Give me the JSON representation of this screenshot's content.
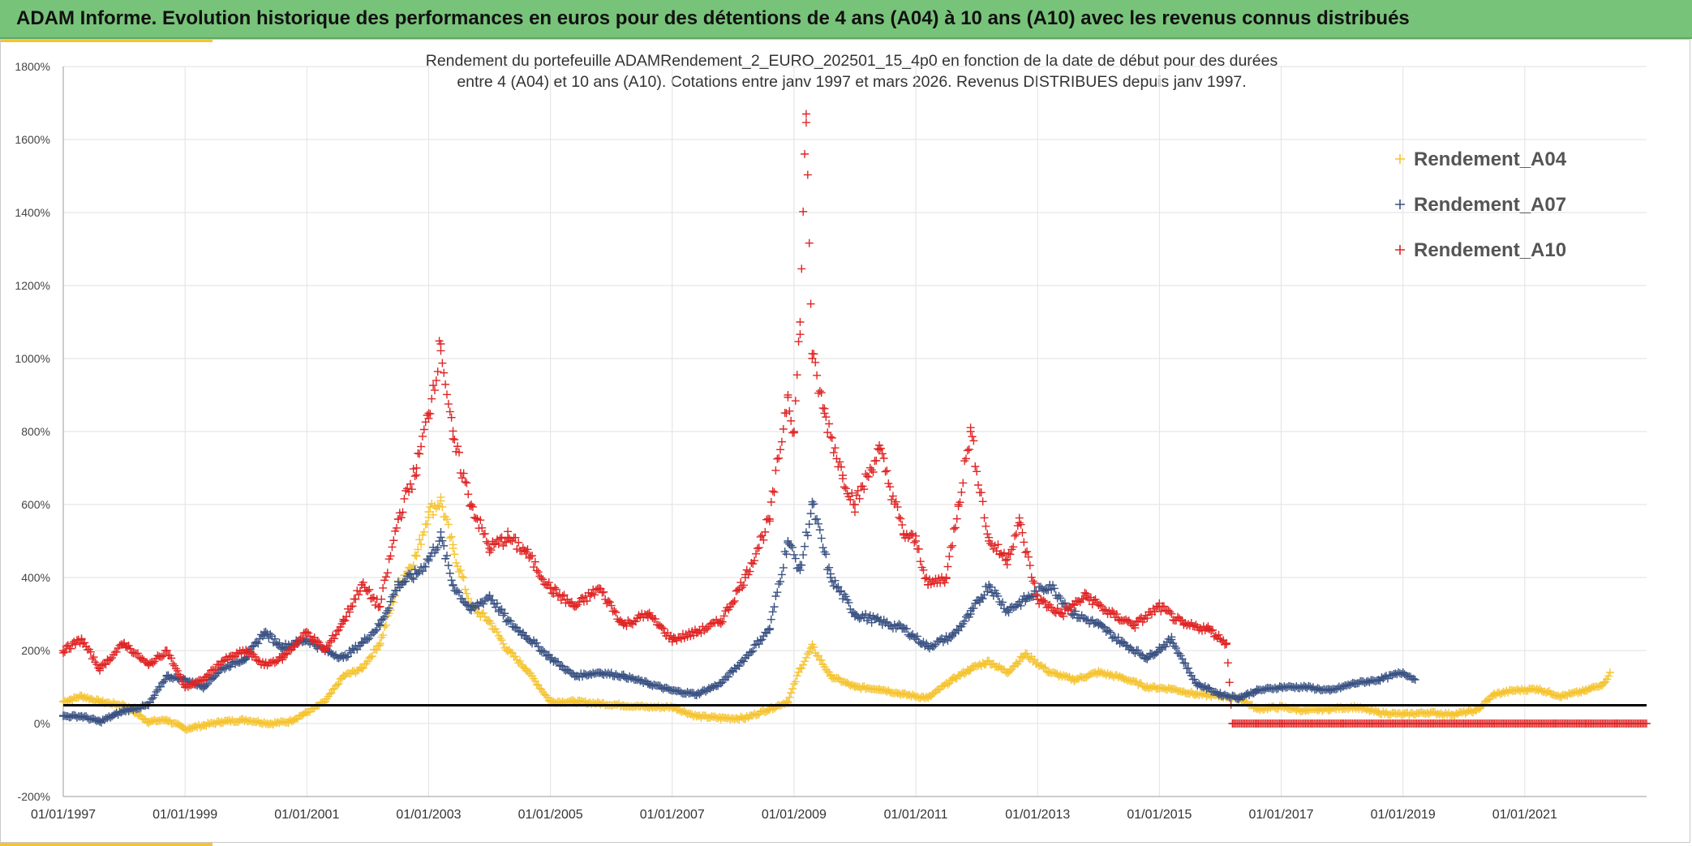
{
  "header": {
    "title": "ADAM Informe. Evolution historique des performances en euros pour des détentions de 4 ans (A04) à 10 ans (A10) avec les revenus connus distribués"
  },
  "chart_data": {
    "type": "scatter",
    "title_line1": "Rendement du portefeuille ADAMRendement_2_EURO_202501_15_4p0  en fonction de la date de début pour des durées",
    "title_line2": "entre 4 (A04) et 10 ans (A10). Cotations entre janv 1997 et mars 2026. Revenus DISTRIBUES depuis janv 1997.",
    "x_range": [
      1997.0,
      2023.0
    ],
    "ylim": [
      -200,
      1800
    ],
    "y_ticks": [
      -200,
      0,
      200,
      400,
      600,
      800,
      1000,
      1200,
      1400,
      1600,
      1800
    ],
    "y_tick_labels": [
      "-200%",
      "0%",
      "200%",
      "400%",
      "600%",
      "800%",
      "1000%",
      "1200%",
      "1400%",
      "1600%",
      "1800%"
    ],
    "x_ticks": [
      1997,
      1999,
      2001,
      2003,
      2005,
      2007,
      2009,
      2011,
      2013,
      2015,
      2017,
      2019,
      2021
    ],
    "x_tick_labels": [
      "01/01/1997",
      "01/01/1999",
      "01/01/2001",
      "01/01/2003",
      "01/01/2005",
      "01/01/2007",
      "01/01/2009",
      "01/01/2011",
      "01/01/2013",
      "01/01/2015",
      "01/01/2017",
      "01/01/2019",
      "01/01/2021"
    ],
    "reference_line": 50,
    "legend_position": "top-right",
    "series": [
      {
        "name": "Rendement_A04",
        "color": "#f5c431",
        "x": [
          1997.0,
          1997.3,
          1997.6,
          1998.0,
          1998.4,
          1998.7,
          1999.0,
          1999.3,
          1999.6,
          2000.0,
          2000.4,
          2000.7,
          2001.0,
          2001.3,
          2001.6,
          2001.9,
          2002.2,
          2002.5,
          2002.8,
          2003.0,
          2003.2,
          2003.4,
          2003.7,
          2004.0,
          2004.3,
          2004.6,
          2005.0,
          2005.4,
          2005.8,
          2006.2,
          2006.6,
          2007.0,
          2007.4,
          2007.8,
          2008.2,
          2008.6,
          2008.9,
          2009.1,
          2009.3,
          2009.6,
          2010.0,
          2010.4,
          2010.8,
          2011.2,
          2011.6,
          2011.9,
          2012.2,
          2012.5,
          2012.8,
          2013.2,
          2013.6,
          2014.0,
          2014.4,
          2014.8,
          2015.2,
          2015.6,
          2016.0,
          2016.3,
          2016.6,
          2017.0,
          2017.4,
          2017.8,
          2018.2,
          2018.6,
          2019.0,
          2019.4,
          2019.8,
          2020.2,
          2020.5,
          2020.8,
          2021.2,
          2021.6,
          2022.0,
          2022.3,
          2022.4
        ],
        "y": [
          60,
          75,
          60,
          50,
          5,
          10,
          -15,
          -5,
          5,
          10,
          0,
          5,
          30,
          60,
          130,
          150,
          220,
          380,
          460,
          580,
          610,
          480,
          320,
          280,
          200,
          150,
          60,
          60,
          55,
          50,
          45,
          45,
          20,
          15,
          15,
          40,
          60,
          150,
          210,
          130,
          100,
          95,
          80,
          70,
          120,
          150,
          170,
          140,
          190,
          140,
          120,
          140,
          125,
          100,
          95,
          80,
          75,
          70,
          40,
          45,
          35,
          40,
          45,
          30,
          25,
          30,
          25,
          35,
          80,
          90,
          95,
          75,
          90,
          110,
          140
        ]
      },
      {
        "name": "Rendement_A07",
        "color": "#3a5283",
        "x": [
          1997.0,
          1997.3,
          1997.6,
          1998.0,
          1998.4,
          1998.7,
          1999.0,
          1999.3,
          1999.6,
          2000.0,
          2000.3,
          2000.6,
          2001.0,
          2001.3,
          2001.6,
          2001.9,
          2002.2,
          2002.5,
          2002.8,
          2003.0,
          2003.2,
          2003.4,
          2003.7,
          2004.0,
          2004.3,
          2004.6,
          2005.0,
          2005.4,
          2005.8,
          2006.2,
          2006.6,
          2007.0,
          2007.4,
          2007.8,
          2008.2,
          2008.6,
          2008.9,
          2009.1,
          2009.3,
          2009.6,
          2010.0,
          2010.4,
          2010.8,
          2011.2,
          2011.6,
          2011.9,
          2012.2,
          2012.5,
          2012.8,
          2013.2,
          2013.6,
          2014.0,
          2014.4,
          2014.8,
          2015.2,
          2015.6,
          2016.0,
          2016.3,
          2016.6,
          2017.0,
          2017.4,
          2017.8,
          2018.2,
          2018.6,
          2019.0,
          2019.2
        ],
        "y": [
          20,
          20,
          5,
          35,
          50,
          130,
          120,
          100,
          150,
          180,
          250,
          210,
          230,
          200,
          180,
          220,
          270,
          380,
          410,
          450,
          510,
          380,
          310,
          350,
          280,
          240,
          180,
          130,
          140,
          130,
          110,
          90,
          80,
          110,
          180,
          260,
          500,
          420,
          600,
          400,
          300,
          280,
          260,
          210,
          240,
          300,
          380,
          310,
          340,
          380,
          300,
          270,
          220,
          180,
          230,
          110,
          80,
          70,
          90,
          100,
          100,
          90,
          110,
          120,
          140,
          120
        ]
      },
      {
        "name": "Rendement_A10",
        "color": "#e02424",
        "x": [
          1997.0,
          1997.3,
          1997.6,
          1998.0,
          1998.4,
          1998.7,
          1999.0,
          1999.3,
          1999.6,
          2000.0,
          2000.3,
          2000.6,
          2001.0,
          2001.3,
          2001.6,
          2001.9,
          2002.2,
          2002.5,
          2002.8,
          2003.0,
          2003.2,
          2003.4,
          2003.7,
          2004.0,
          2004.3,
          2004.6,
          2005.0,
          2005.4,
          2005.8,
          2006.2,
          2006.6,
          2007.0,
          2007.4,
          2007.8,
          2008.2,
          2008.6,
          2008.9,
          2009.0,
          2009.1,
          2009.2,
          2009.3,
          2009.5,
          2009.8,
          2010.0,
          2010.4,
          2010.8,
          2011.0,
          2011.2,
          2011.5,
          2011.7,
          2011.9,
          2012.2,
          2012.5,
          2012.7,
          2013.0,
          2013.4,
          2013.8,
          2014.2,
          2014.6,
          2015.0,
          2015.4,
          2015.8,
          2016.1,
          2016.2,
          2016.6,
          2017.0,
          2017.5,
          2018.0,
          2018.5,
          2019.0,
          2019.5,
          2020.0,
          2020.5,
          2021.0,
          2021.5,
          2022.0,
          2022.5,
          2023.0
        ],
        "y": [
          200,
          230,
          150,
          220,
          160,
          200,
          100,
          120,
          170,
          200,
          160,
          180,
          250,
          200,
          280,
          380,
          320,
          560,
          700,
          850,
          1040,
          780,
          600,
          480,
          510,
          470,
          370,
          320,
          370,
          270,
          300,
          230,
          250,
          280,
          400,
          560,
          900,
          800,
          1100,
          1670,
          1000,
          850,
          680,
          600,
          750,
          520,
          500,
          380,
          400,
          600,
          800,
          500,
          450,
          550,
          340,
          300,
          350,
          300,
          270,
          320,
          270,
          260,
          220,
          0,
          0,
          0,
          0,
          0,
          0,
          0,
          0,
          0,
          0,
          0,
          0,
          0,
          0,
          0
        ]
      }
    ]
  }
}
